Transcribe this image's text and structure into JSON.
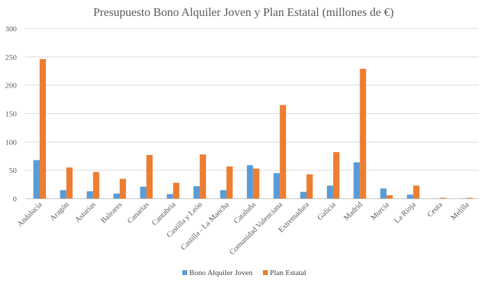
{
  "chart_data": {
    "type": "bar",
    "title": "Presupuesto Bono Alquiler Joven y Plan Estatal (millones de €)",
    "xlabel": "",
    "ylabel": "",
    "ylim": [
      0,
      300
    ],
    "yticks": [
      "0",
      "50",
      "100",
      "150",
      "200",
      "250",
      "300"
    ],
    "grid": true,
    "legend_position": "bottom",
    "categories": [
      "Andalucía",
      "Aragón",
      "Asturias",
      "Baleares",
      "Canarias",
      "Cantabria",
      "Castilla y León",
      "Castilla - La Mancha",
      "Cataluña",
      "Comunidad Valenciana",
      "Extremadura",
      "Galicia",
      "Madrid",
      "Murcia",
      "La Rioja",
      "Ceuta",
      "Melilla"
    ],
    "series": [
      {
        "name": "Bono Alquiler Joven",
        "color": "#5B9BD5",
        "values": [
          68,
          15,
          13,
          9,
          21,
          8,
          22,
          15,
          59,
          45,
          12,
          23,
          64,
          18,
          7,
          0.5,
          0.5
        ]
      },
      {
        "name": "Plan Estatal",
        "color": "#ED7D31",
        "values": [
          246,
          55,
          47,
          35,
          77,
          28,
          78,
          57,
          53,
          165,
          43,
          82,
          229,
          6,
          23,
          1.5,
          1.5
        ]
      }
    ]
  }
}
